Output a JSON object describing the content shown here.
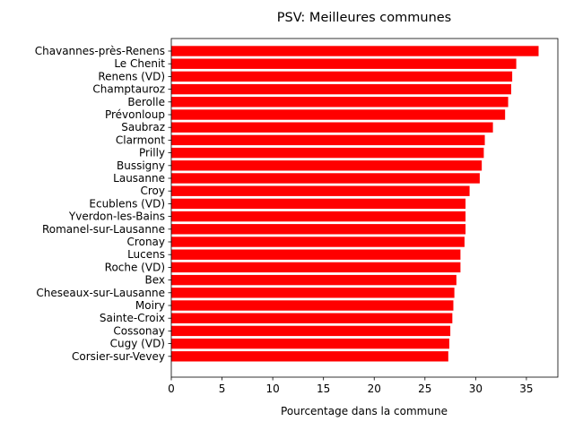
{
  "chart_data": {
    "type": "bar",
    "orientation": "horizontal",
    "title": "PSV: Meilleures communes",
    "xlabel": "Pourcentage dans la commune",
    "ylabel": "",
    "xlim": [
      0,
      38.1
    ],
    "xticks": [
      0,
      5,
      10,
      15,
      20,
      25,
      30,
      35
    ],
    "grid": false,
    "bar_color": "#ff0000",
    "categories": [
      "Chavannes-près-Renens",
      "Le Chenit",
      "Renens (VD)",
      "Champtauroz",
      "Berolle",
      "Prévonloup",
      "Saubraz",
      "Clarmont",
      "Prilly",
      "Bussigny",
      "Lausanne",
      "Croy",
      "Ecublens (VD)",
      "Yverdon-les-Bains",
      "Romanel-sur-Lausanne",
      "Cronay",
      "Lucens",
      "Roche (VD)",
      "Bex",
      "Cheseaux-sur-Lausanne",
      "Moiry",
      "Sainte-Croix",
      "Cossonay",
      "Cugy (VD)",
      "Corsier-sur-Vevey"
    ],
    "values": [
      36.2,
      34.0,
      33.6,
      33.5,
      33.2,
      32.9,
      31.7,
      30.9,
      30.8,
      30.6,
      30.4,
      29.4,
      29.0,
      29.0,
      29.0,
      28.9,
      28.5,
      28.5,
      28.1,
      27.9,
      27.8,
      27.7,
      27.5,
      27.4,
      27.3
    ]
  }
}
